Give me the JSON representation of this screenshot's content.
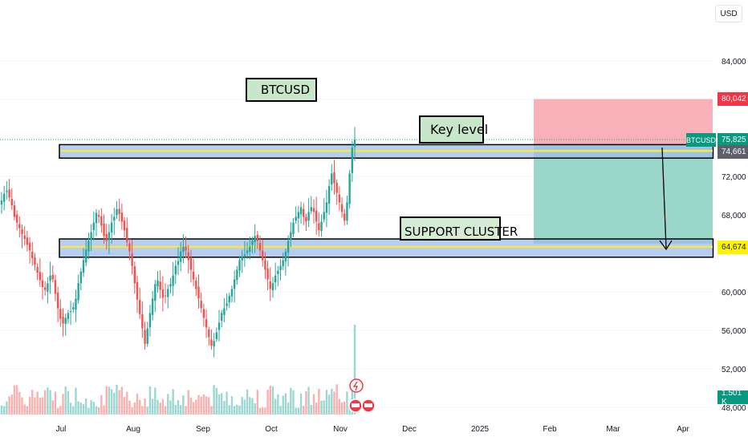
{
  "currency": "USD",
  "annotations": {
    "title": "BTCUSD",
    "key_level": "Key level",
    "support_cluster": "SUPPORT CLUSTER"
  },
  "price_tags": {
    "target": "80,042",
    "symbol": "BTCUSD",
    "last": "75,825",
    "key_level": "74,661",
    "support": "64,674",
    "volume": "1.501 K"
  },
  "colors": {
    "up": "#26a69a",
    "down": "#ef5350",
    "zone_fill": "#9fbde8",
    "zone_line": "#f4e84b",
    "stop_zone": "#f7a9b0",
    "target_zone": "#8fd3c4",
    "support_tag": "#fff200",
    "target_tag": "#f23645",
    "last_tag": "#089981",
    "key_tag": "#5d606b"
  },
  "chart_data": {
    "type": "candlestick",
    "symbol": "BTCUSD",
    "ylim": [
      48000,
      88000
    ],
    "y_ticks": [
      48000,
      52000,
      56000,
      60000,
      64000,
      68000,
      72000,
      76000,
      80000,
      84000
    ],
    "y_tick_labels": [
      "48,000",
      "52,000",
      "56,000",
      "60,000",
      "",
      "68,000",
      "72,000",
      "",
      "",
      "84,000"
    ],
    "x_tick_labels": [
      "Jul",
      "Aug",
      "Sep",
      "Oct",
      "Nov",
      "Dec",
      "2025",
      "Feb",
      "Mar",
      "Apr"
    ],
    "levels": {
      "key_level": 74661,
      "support": 64674,
      "last": 75825,
      "target": 80042
    },
    "zones": {
      "key_level_zone": [
        73900,
        75300
      ],
      "support_cluster_zone": [
        63600,
        65500
      ],
      "stop_zone": [
        75300,
        80042
      ],
      "target_zone": [
        65000,
        75300
      ]
    },
    "closes": [
      69500,
      70200,
      70500,
      69800,
      69000,
      67800,
      67200,
      66600,
      66000,
      65500,
      64900,
      64300,
      63500,
      62800,
      62000,
      61200,
      60500,
      60200,
      60900,
      61700,
      61300,
      59800,
      58300,
      57200,
      56700,
      57300,
      57800,
      58000,
      58400,
      59300,
      60900,
      62100,
      63300,
      64400,
      65300,
      66200,
      67200,
      68200,
      67800,
      66900,
      65800,
      65300,
      66200,
      67200,
      67800,
      68600,
      68100,
      67300,
      66400,
      65200,
      64200,
      62700,
      60900,
      59200,
      57700,
      56200,
      54600,
      56200,
      57800,
      59300,
      60800,
      61200,
      60200,
      59400,
      59600,
      60300,
      60800,
      61700,
      62700,
      63200,
      64200,
      64700,
      64300,
      63300,
      62300,
      61300,
      60300,
      59300,
      58300,
      57300,
      56300,
      55300,
      54400,
      54900,
      55800,
      56800,
      57800,
      58300,
      58800,
      59600,
      60300,
      61300,
      62300,
      63300,
      63700,
      63900,
      64300,
      64700,
      65300,
      65800,
      65300,
      64300,
      63300,
      62300,
      61300,
      60300,
      60900,
      61700,
      62200,
      62700,
      63300,
      64200,
      65300,
      66200,
      67200,
      67800,
      68300,
      68800,
      67800,
      67300,
      68300,
      68800,
      68300,
      67300,
      66400,
      67300,
      68300,
      69300,
      71000,
      72300,
      71300,
      70300,
      69300,
      68300,
      67400,
      69300,
      72300,
      75000,
      75825
    ]
  }
}
